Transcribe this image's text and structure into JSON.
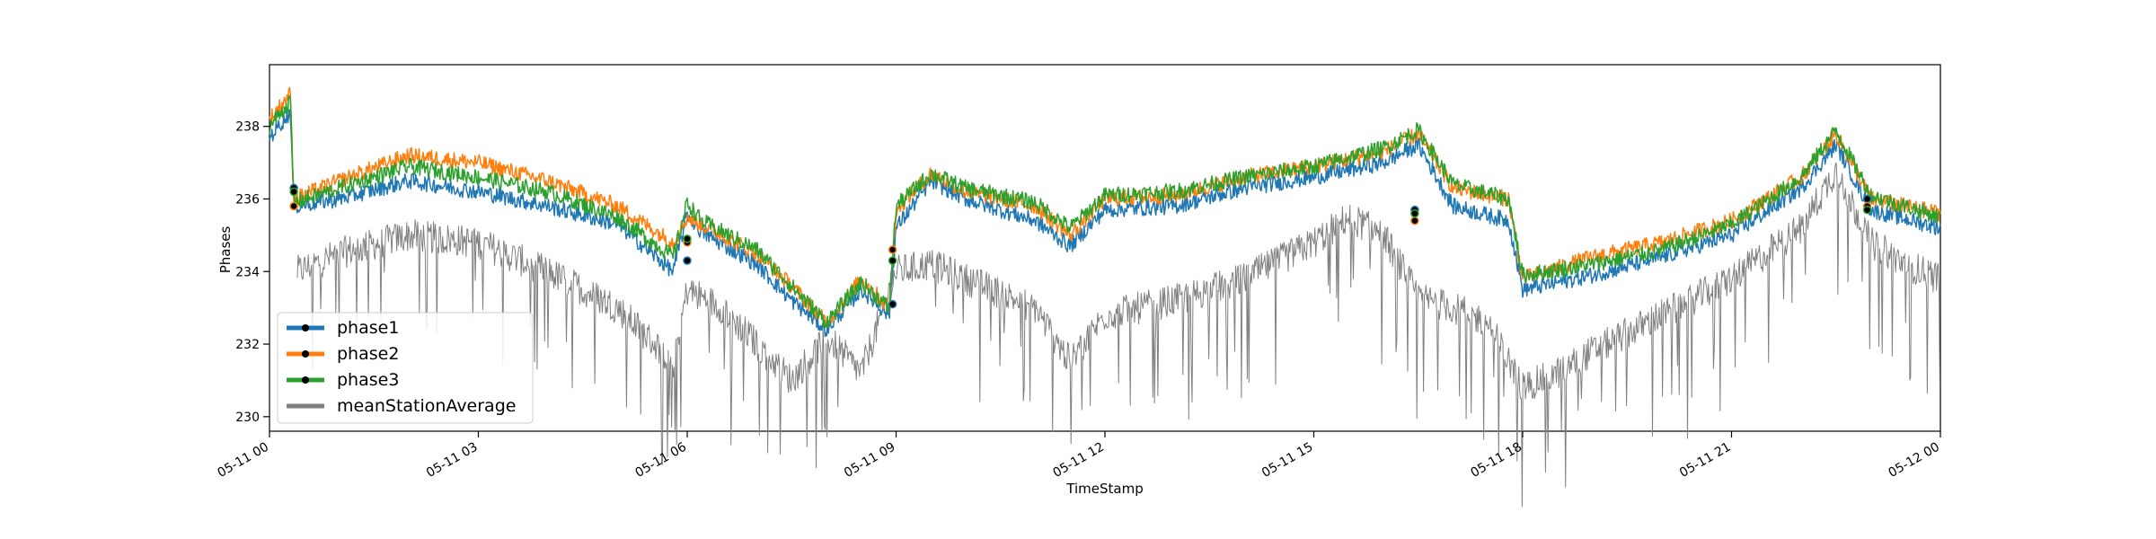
{
  "chart_data": {
    "type": "line",
    "xlabel": "TimeStamp",
    "ylabel": "Phases",
    "xlim_hours": [
      0,
      24
    ],
    "ylim": [
      229.6,
      239.7
    ],
    "x_ticks": [
      {
        "hour": 0,
        "label": "05-11 00"
      },
      {
        "hour": 3,
        "label": "05-11 03"
      },
      {
        "hour": 6,
        "label": "05-11 06"
      },
      {
        "hour": 9,
        "label": "05-11 09"
      },
      {
        "hour": 12,
        "label": "05-11 12"
      },
      {
        "hour": 15,
        "label": "05-11 15"
      },
      {
        "hour": 18,
        "label": "05-11 18"
      },
      {
        "hour": 21,
        "label": "05-11 21"
      },
      {
        "hour": 24,
        "label": "05-12 00"
      }
    ],
    "y_ticks": [
      230,
      232,
      234,
      236,
      238
    ],
    "grid": false,
    "legend_position": "lower-left",
    "series": [
      {
        "name": "phase1",
        "color": "#1f77b4",
        "x_hours": [
          0,
          0.3,
          0.35,
          1,
          2,
          3,
          4,
          5,
          5.8,
          6,
          6.2,
          7,
          7.5,
          8,
          8.5,
          8.9,
          9,
          9.5,
          10,
          11,
          11.5,
          12,
          13,
          14,
          15,
          16,
          16.5,
          17,
          17.8,
          18,
          19,
          20,
          21,
          22,
          22.5,
          23,
          24
        ],
        "values": [
          237.7,
          238.4,
          235.8,
          236.0,
          236.5,
          236.2,
          235.8,
          235.3,
          234.0,
          235.6,
          235.1,
          234.2,
          233.2,
          232.4,
          233.5,
          232.8,
          235.2,
          236.5,
          236.0,
          235.4,
          234.7,
          235.7,
          235.8,
          236.3,
          236.6,
          237.0,
          237.5,
          235.8,
          235.4,
          233.5,
          233.9,
          234.4,
          235.0,
          236.3,
          237.5,
          235.7,
          235.2
        ]
      },
      {
        "name": "phase2",
        "color": "#ff7f0e",
        "x_hours": [
          0,
          0.3,
          0.35,
          1,
          2,
          3,
          4,
          5,
          5.8,
          6,
          6.2,
          7,
          7.5,
          8,
          8.5,
          8.9,
          9,
          9.5,
          10,
          11,
          11.5,
          12,
          13,
          14,
          15,
          16,
          16.5,
          17,
          17.8,
          18,
          19,
          20,
          21,
          22,
          22.5,
          23,
          24
        ],
        "values": [
          238.2,
          238.9,
          236.0,
          236.5,
          237.2,
          237.0,
          236.5,
          235.8,
          234.8,
          235.5,
          235.3,
          234.5,
          233.6,
          232.6,
          233.8,
          233.0,
          235.7,
          236.7,
          236.2,
          235.8,
          235.0,
          236.0,
          236.1,
          236.6,
          236.9,
          237.3,
          237.8,
          236.3,
          236.0,
          233.8,
          234.4,
          234.8,
          235.4,
          236.6,
          237.8,
          236.0,
          235.6
        ]
      },
      {
        "name": "phase3",
        "color": "#2ca02c",
        "x_hours": [
          0,
          0.3,
          0.35,
          1,
          2,
          3,
          4,
          5,
          5.8,
          6,
          6.2,
          7,
          7.5,
          8,
          8.5,
          8.9,
          9,
          9.5,
          10,
          11,
          11.5,
          12,
          13,
          14,
          15,
          16,
          16.5,
          17,
          17.8,
          18,
          19,
          20,
          21,
          22,
          22.5,
          23,
          24
        ],
        "values": [
          238.0,
          238.7,
          235.9,
          236.3,
          236.9,
          236.6,
          236.2,
          235.5,
          234.4,
          235.9,
          235.4,
          234.6,
          233.6,
          232.6,
          233.7,
          233.0,
          235.8,
          236.7,
          236.3,
          235.9,
          235.2,
          236.1,
          236.2,
          236.6,
          236.9,
          237.4,
          237.9,
          236.4,
          236.0,
          233.9,
          234.2,
          234.6,
          235.3,
          236.6,
          237.9,
          236.1,
          235.5
        ]
      },
      {
        "name": "meanStationAverage",
        "color": "#808080",
        "x_hours": [
          0.4,
          1,
          2,
          3,
          4,
          5,
          5.8,
          6,
          6.5,
          7,
          7.5,
          8,
          8.5,
          9,
          9.5,
          10,
          11,
          11.5,
          12,
          13,
          14,
          15,
          15.5,
          16,
          16.5,
          17,
          17.5,
          18,
          18.5,
          19,
          20,
          21,
          22,
          22.5,
          23,
          23.5,
          24
        ],
        "values": [
          234.0,
          234.5,
          235.0,
          234.8,
          234.0,
          233.0,
          231.5,
          233.5,
          233.0,
          232.0,
          231.0,
          232.2,
          231.2,
          234.0,
          234.2,
          233.8,
          233.0,
          231.5,
          232.8,
          233.2,
          233.8,
          234.8,
          235.5,
          235.0,
          233.3,
          233.0,
          232.6,
          230.8,
          231.2,
          231.8,
          232.8,
          233.8,
          235.2,
          236.8,
          234.8,
          234.2,
          233.8
        ]
      }
    ],
    "jump_markers": {
      "color": "#000000",
      "x_hours": [
        0.35,
        0.35,
        0.35,
        6.0,
        6.0,
        6.0,
        8.95,
        8.95,
        8.95,
        16.45,
        16.45,
        16.45,
        22.95,
        22.95,
        22.95
      ],
      "values": [
        236.3,
        235.8,
        236.2,
        234.3,
        234.8,
        234.9,
        233.1,
        234.6,
        234.3,
        235.7,
        235.4,
        235.6,
        236.0,
        235.8,
        235.7
      ]
    }
  }
}
